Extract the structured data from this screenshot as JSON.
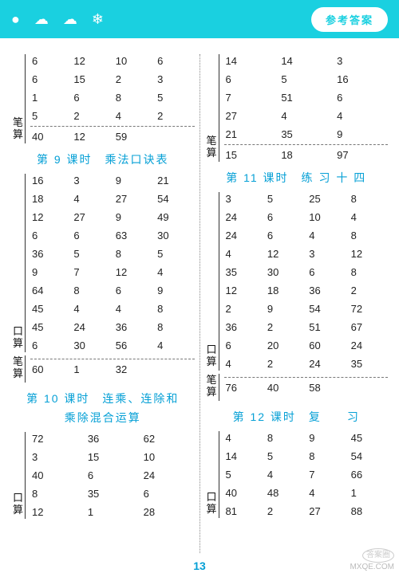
{
  "header": {
    "title": "参考答案"
  },
  "page_number": "13",
  "watermark": {
    "line1": "答案圈",
    "line2": "MXQE.COM"
  },
  "labels": {
    "kousuan": "口算",
    "bisuan": "笔算"
  },
  "left": {
    "top": {
      "rows": [
        [
          "6",
          "12",
          "10",
          "6"
        ],
        [
          "6",
          "15",
          "2",
          "3"
        ],
        [
          "1",
          "6",
          "8",
          "5"
        ],
        [
          "5",
          "2",
          "4",
          "2"
        ]
      ],
      "bi": [
        "40",
        "12",
        "59"
      ]
    },
    "s9": {
      "title": "第 9 课时　乘法口诀表",
      "rows": [
        [
          "16",
          "3",
          "9",
          "21"
        ],
        [
          "18",
          "4",
          "27",
          "54"
        ],
        [
          "12",
          "27",
          "9",
          "49"
        ],
        [
          "6",
          "6",
          "63",
          "30"
        ],
        [
          "36",
          "5",
          "8",
          "5"
        ],
        [
          "9",
          "7",
          "12",
          "4"
        ],
        [
          "64",
          "8",
          "6",
          "9"
        ],
        [
          "45",
          "4",
          "4",
          "8"
        ],
        [
          "45",
          "24",
          "36",
          "8"
        ],
        [
          "6",
          "30",
          "56",
          "4"
        ]
      ],
      "bi": [
        "60",
        "1",
        "32"
      ]
    },
    "s10": {
      "title1": "第 10 课时　连乘、连除和",
      "title2": "乘除混合运算",
      "rows": [
        [
          "72",
          "36",
          "62"
        ],
        [
          "3",
          "15",
          "10"
        ],
        [
          "40",
          "6",
          "24"
        ],
        [
          "8",
          "35",
          "6"
        ],
        [
          "12",
          "1",
          "28"
        ]
      ]
    }
  },
  "right": {
    "top": {
      "rows": [
        [
          "14",
          "14",
          "3"
        ],
        [
          "6",
          "5",
          "16"
        ],
        [
          "7",
          "51",
          "6"
        ],
        [
          "27",
          "4",
          "4"
        ],
        [
          "21",
          "35",
          "9"
        ]
      ],
      "bi": [
        "15",
        "18",
        "97"
      ]
    },
    "s11": {
      "title": "第 11 课时　练 习 十 四",
      "rows": [
        [
          "3",
          "5",
          "25",
          "8"
        ],
        [
          "24",
          "6",
          "10",
          "4"
        ],
        [
          "24",
          "6",
          "4",
          "8"
        ],
        [
          "4",
          "12",
          "3",
          "12"
        ],
        [
          "35",
          "30",
          "6",
          "8"
        ],
        [
          "12",
          "18",
          "36",
          "2"
        ],
        [
          "2",
          "9",
          "54",
          "72"
        ],
        [
          "36",
          "2",
          "51",
          "67"
        ],
        [
          "6",
          "20",
          "60",
          "24"
        ],
        [
          "4",
          "2",
          "24",
          "35"
        ]
      ],
      "bi": [
        "76",
        "40",
        "58"
      ]
    },
    "s12": {
      "title": "第 12 课时　复　　习",
      "rows": [
        [
          "4",
          "8",
          "9",
          "45"
        ],
        [
          "14",
          "5",
          "8",
          "54"
        ],
        [
          "5",
          "4",
          "7",
          "66"
        ],
        [
          "40",
          "48",
          "4",
          "1"
        ],
        [
          "81",
          "2",
          "27",
          "88"
        ]
      ]
    }
  }
}
